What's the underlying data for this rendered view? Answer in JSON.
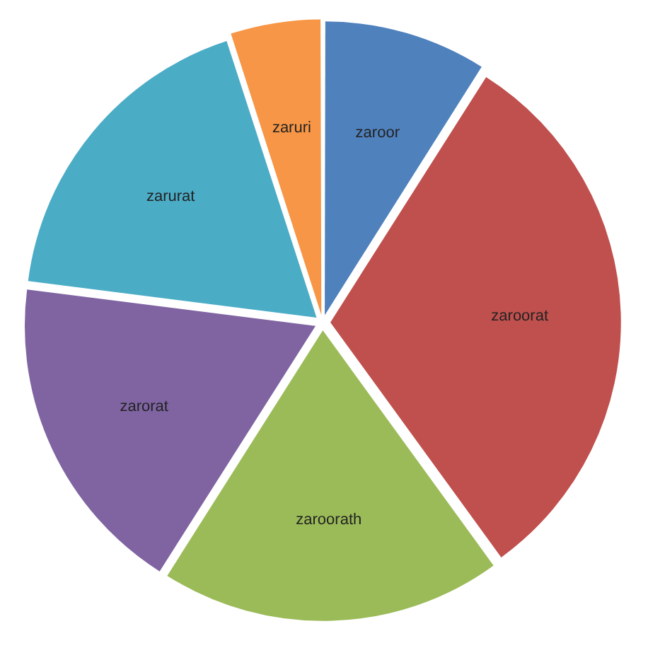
{
  "chart_data": {
    "type": "pie",
    "categories": [
      "zaroor",
      "zaroorat",
      "zaroorath",
      "zarorat",
      "zarurat",
      "zaruri"
    ],
    "values": [
      9,
      31,
      19,
      18,
      18,
      5
    ],
    "colors": [
      "#4f81bd",
      "#c0504d",
      "#9bbb59",
      "#8064a2",
      "#4bacc6",
      "#f79646"
    ],
    "legend": false
  }
}
